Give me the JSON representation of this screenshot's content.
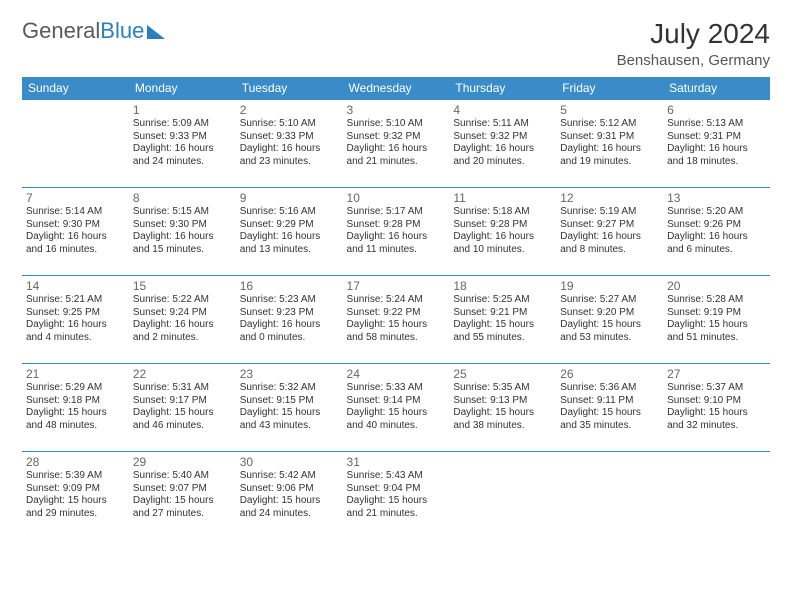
{
  "logo": {
    "text1": "General",
    "text2": "Blue"
  },
  "header": {
    "month": "July 2024",
    "location": "Benshausen, Germany"
  },
  "colors": {
    "header_bg": "#3a8cc9",
    "header_fg": "#ffffff",
    "rule": "#3a8cc9",
    "text": "#333333"
  },
  "weekdays": [
    "Sunday",
    "Monday",
    "Tuesday",
    "Wednesday",
    "Thursday",
    "Friday",
    "Saturday"
  ],
  "weeks": [
    [
      null,
      {
        "d": "1",
        "sr": "5:09 AM",
        "ss": "9:33 PM",
        "dl": "16 hours and 24 minutes."
      },
      {
        "d": "2",
        "sr": "5:10 AM",
        "ss": "9:33 PM",
        "dl": "16 hours and 23 minutes."
      },
      {
        "d": "3",
        "sr": "5:10 AM",
        "ss": "9:32 PM",
        "dl": "16 hours and 21 minutes."
      },
      {
        "d": "4",
        "sr": "5:11 AM",
        "ss": "9:32 PM",
        "dl": "16 hours and 20 minutes."
      },
      {
        "d": "5",
        "sr": "5:12 AM",
        "ss": "9:31 PM",
        "dl": "16 hours and 19 minutes."
      },
      {
        "d": "6",
        "sr": "5:13 AM",
        "ss": "9:31 PM",
        "dl": "16 hours and 18 minutes."
      }
    ],
    [
      {
        "d": "7",
        "sr": "5:14 AM",
        "ss": "9:30 PM",
        "dl": "16 hours and 16 minutes."
      },
      {
        "d": "8",
        "sr": "5:15 AM",
        "ss": "9:30 PM",
        "dl": "16 hours and 15 minutes."
      },
      {
        "d": "9",
        "sr": "5:16 AM",
        "ss": "9:29 PM",
        "dl": "16 hours and 13 minutes."
      },
      {
        "d": "10",
        "sr": "5:17 AM",
        "ss": "9:28 PM",
        "dl": "16 hours and 11 minutes."
      },
      {
        "d": "11",
        "sr": "5:18 AM",
        "ss": "9:28 PM",
        "dl": "16 hours and 10 minutes."
      },
      {
        "d": "12",
        "sr": "5:19 AM",
        "ss": "9:27 PM",
        "dl": "16 hours and 8 minutes."
      },
      {
        "d": "13",
        "sr": "5:20 AM",
        "ss": "9:26 PM",
        "dl": "16 hours and 6 minutes."
      }
    ],
    [
      {
        "d": "14",
        "sr": "5:21 AM",
        "ss": "9:25 PM",
        "dl": "16 hours and 4 minutes."
      },
      {
        "d": "15",
        "sr": "5:22 AM",
        "ss": "9:24 PM",
        "dl": "16 hours and 2 minutes."
      },
      {
        "d": "16",
        "sr": "5:23 AM",
        "ss": "9:23 PM",
        "dl": "16 hours and 0 minutes."
      },
      {
        "d": "17",
        "sr": "5:24 AM",
        "ss": "9:22 PM",
        "dl": "15 hours and 58 minutes."
      },
      {
        "d": "18",
        "sr": "5:25 AM",
        "ss": "9:21 PM",
        "dl": "15 hours and 55 minutes."
      },
      {
        "d": "19",
        "sr": "5:27 AM",
        "ss": "9:20 PM",
        "dl": "15 hours and 53 minutes."
      },
      {
        "d": "20",
        "sr": "5:28 AM",
        "ss": "9:19 PM",
        "dl": "15 hours and 51 minutes."
      }
    ],
    [
      {
        "d": "21",
        "sr": "5:29 AM",
        "ss": "9:18 PM",
        "dl": "15 hours and 48 minutes."
      },
      {
        "d": "22",
        "sr": "5:31 AM",
        "ss": "9:17 PM",
        "dl": "15 hours and 46 minutes."
      },
      {
        "d": "23",
        "sr": "5:32 AM",
        "ss": "9:15 PM",
        "dl": "15 hours and 43 minutes."
      },
      {
        "d": "24",
        "sr": "5:33 AM",
        "ss": "9:14 PM",
        "dl": "15 hours and 40 minutes."
      },
      {
        "d": "25",
        "sr": "5:35 AM",
        "ss": "9:13 PM",
        "dl": "15 hours and 38 minutes."
      },
      {
        "d": "26",
        "sr": "5:36 AM",
        "ss": "9:11 PM",
        "dl": "15 hours and 35 minutes."
      },
      {
        "d": "27",
        "sr": "5:37 AM",
        "ss": "9:10 PM",
        "dl": "15 hours and 32 minutes."
      }
    ],
    [
      {
        "d": "28",
        "sr": "5:39 AM",
        "ss": "9:09 PM",
        "dl": "15 hours and 29 minutes."
      },
      {
        "d": "29",
        "sr": "5:40 AM",
        "ss": "9:07 PM",
        "dl": "15 hours and 27 minutes."
      },
      {
        "d": "30",
        "sr": "5:42 AM",
        "ss": "9:06 PM",
        "dl": "15 hours and 24 minutes."
      },
      {
        "d": "31",
        "sr": "5:43 AM",
        "ss": "9:04 PM",
        "dl": "15 hours and 21 minutes."
      },
      null,
      null,
      null
    ]
  ],
  "labels": {
    "sr": "Sunrise: ",
    "ss": "Sunset: ",
    "dl": "Daylight: "
  }
}
